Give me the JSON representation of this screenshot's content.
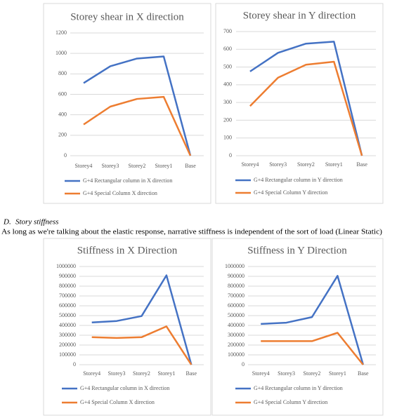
{
  "section_number": "D.",
  "section_title": "Story stiffness",
  "paragraph": "As long as we're talking about the elastic response, narrative stiffness is independent of the sort of load (Linear Static)",
  "chart_data": [
    {
      "type": "line",
      "title": "Storey shear in X direction",
      "categories": [
        "Storey4",
        "Storey3",
        "Storey2",
        "Storey1",
        "Base"
      ],
      "series": [
        {
          "name": "G+4 Rectangular column in X direction",
          "color": "#4472c4",
          "values": [
            710,
            875,
            950,
            970,
            0
          ]
        },
        {
          "name": "G+4 Special Column X direction",
          "color": "#ed7d31",
          "values": [
            305,
            480,
            555,
            575,
            0
          ]
        }
      ],
      "ylim": [
        0,
        1200
      ],
      "yticks": [
        0,
        200,
        400,
        600,
        800,
        1000,
        1200
      ],
      "grid": true
    },
    {
      "type": "line",
      "title": "Storey shear in Y direction",
      "categories": [
        "Storey4",
        "Storey3",
        "Storey2",
        "Storey1",
        "Base"
      ],
      "series": [
        {
          "name": "G+4 Rectangular column in Y direction",
          "color": "#4472c4",
          "values": [
            475,
            580,
            632,
            643,
            0
          ]
        },
        {
          "name": "G+4 Special Column Y direction",
          "color": "#ed7d31",
          "values": [
            280,
            440,
            513,
            530,
            0
          ]
        }
      ],
      "ylim": [
        0,
        700
      ],
      "yticks": [
        0,
        100,
        200,
        300,
        400,
        500,
        600,
        700
      ],
      "grid": true
    },
    {
      "type": "line",
      "title": "Stiffness in X Direction",
      "categories": [
        "Storey4",
        "Storey3",
        "Storey2",
        "Storey1",
        "Base"
      ],
      "series": [
        {
          "name": "G+4 Rectangular column in X direction",
          "color": "#4472c4",
          "values": [
            430000,
            445000,
            495000,
            910000,
            0
          ]
        },
        {
          "name": "G+4 Special Column X direction",
          "color": "#ed7d31",
          "values": [
            280000,
            272000,
            280000,
            390000,
            0
          ]
        }
      ],
      "ylim": [
        0,
        1000000
      ],
      "yticks": [
        0,
        {
          "value": 100000,
          "label": "100000"
        },
        {
          "value": 200000,
          "label": "200000"
        },
        {
          "value": 300000,
          "label": "300000"
        },
        {
          "value": 400000,
          "label": "400000"
        },
        {
          "value": 500000,
          "label": "500000"
        },
        {
          "value": 600000,
          "label": "600000"
        },
        {
          "value": 700000,
          "label": "700000"
        },
        {
          "value": 800000,
          "label": "800000"
        },
        {
          "value": 900000,
          "label": "900000"
        },
        {
          "value": 1000000,
          "label": "1000000"
        }
      ],
      "grid": true
    },
    {
      "type": "line",
      "title": "Stiffness in Y Direction",
      "categories": [
        "Storey4",
        "Storey3",
        "Storey2",
        "Storey1",
        "Base"
      ],
      "series": [
        {
          "name": "G+4 Rectangular column in Y direction",
          "color": "#4472c4",
          "values": [
            415000,
            428000,
            485000,
            905000,
            0
          ]
        },
        {
          "name": "G+4 Special Column Y direction",
          "color": "#ed7d31",
          "values": [
            240000,
            240000,
            240000,
            325000,
            0
          ]
        }
      ],
      "ylim": [
        0,
        1000000
      ],
      "yticks": [
        0,
        {
          "value": 100000,
          "label": "100000"
        },
        {
          "value": 200000,
          "label": "200000"
        },
        {
          "value": 300000,
          "label": "300000"
        },
        {
          "value": 400000,
          "label": "400000"
        },
        {
          "value": 500000,
          "label": "500000"
        },
        {
          "value": 600000,
          "label": "600000"
        },
        {
          "value": 700000,
          "label": "700000"
        },
        {
          "value": 800000,
          "label": "800000"
        },
        {
          "value": 900000,
          "label": "900000"
        },
        {
          "value": 1000000,
          "label": "1000000"
        }
      ],
      "grid": true
    }
  ]
}
